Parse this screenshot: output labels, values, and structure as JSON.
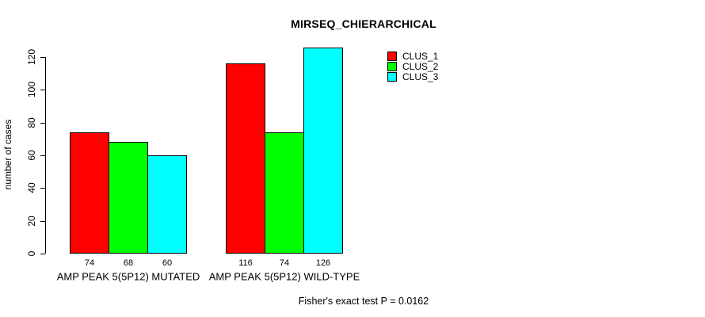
{
  "chart": {
    "title": "MIRSEQ_CHIERARCHICAL",
    "ylabel": "number of cases",
    "footer": "Fisher's exact test P = 0.0162"
  },
  "chart_data": {
    "type": "bar",
    "title": "MIRSEQ_CHIERARCHICAL",
    "xlabel": "",
    "ylabel": "number of cases",
    "categories": [
      "AMP PEAK 5(5P12) MUTATED",
      "AMP PEAK 5(5P12) WILD-TYPE"
    ],
    "series": [
      {
        "name": "CLUS_1",
        "color": "#ff0000",
        "values": [
          74,
          116
        ]
      },
      {
        "name": "CLUS_2",
        "color": "#00ff00",
        "values": [
          68,
          74
        ]
      },
      {
        "name": "CLUS_3",
        "color": "#00ffff",
        "values": [
          60,
          126
        ]
      }
    ],
    "bar_value_labels": [
      [
        "74",
        "68",
        "60"
      ],
      [
        "116",
        "74",
        "126"
      ]
    ],
    "yticks": [
      0,
      20,
      40,
      60,
      80,
      100,
      120
    ],
    "ylim": [
      0,
      130
    ],
    "grid": false,
    "legend_position": "top-right",
    "annotation": "Fisher's exact test P = 0.0162"
  }
}
